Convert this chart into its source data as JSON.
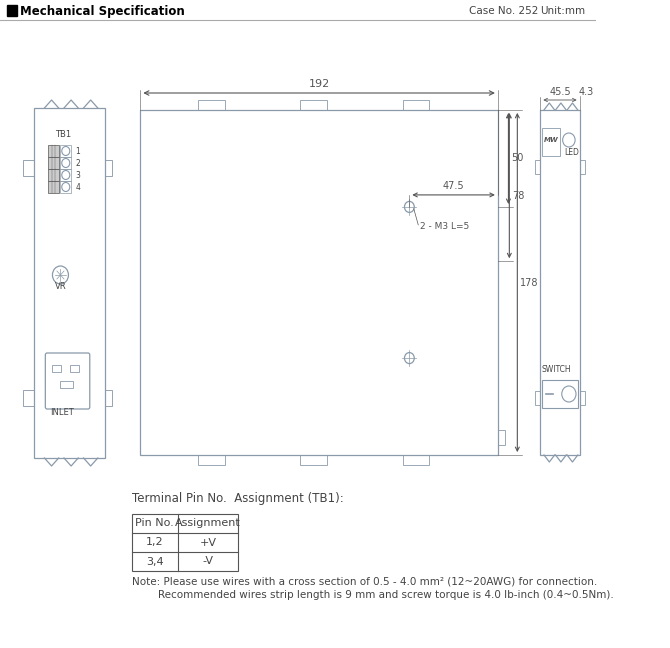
{
  "title": "Mechanical Specification",
  "case_no": "Case No. 252",
  "unit": "Unit:mm",
  "bg_color": "#ffffff",
  "line_color": "#8a9aaa",
  "dim_color": "#555555",
  "text_color": "#444444",
  "terminal_title": "Terminal Pin No.  Assignment (TB1):",
  "table_headers": [
    "Pin No.",
    "Assignment"
  ],
  "table_rows": [
    [
      "1,2",
      "+V"
    ],
    [
      "3,4",
      "-V"
    ]
  ],
  "note_line1": "Note: Please use wires with a cross section of 0.5 - 4.0 mm² (12~20AWG) for connection.",
  "note_line2": "Recommended wires strip length is 9 mm and screw torque is 4.0 lb-inch (0.4~0.5Nm).",
  "dim_192": "192",
  "dim_50": "50",
  "dim_78": "78",
  "dim_178": "178",
  "dim_47_5": "47.5",
  "dim_45_5": "45.5",
  "dim_4_3": "4.3",
  "dim_2M3": "2 - M3 L=5"
}
